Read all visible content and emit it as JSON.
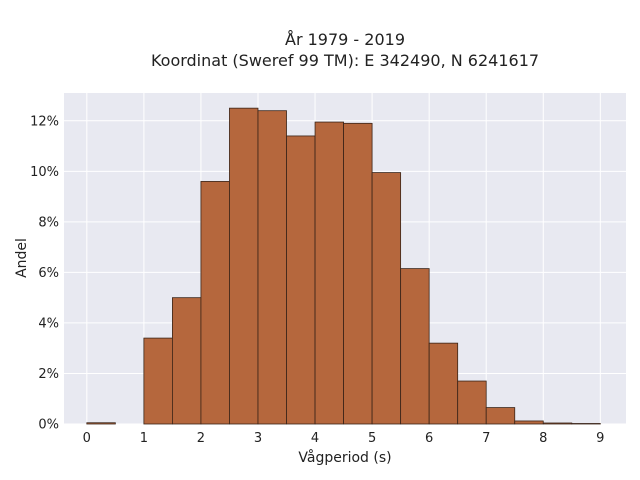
{
  "chart_data": {
    "type": "bar",
    "title": "År 1979 - 2019",
    "subtitle": "Koordinat (Sweref 99 TM): E 342490, N 6241617",
    "xlabel": "Vågperiod (s)",
    "ylabel": "Andel",
    "bin_width": 0.5,
    "bins": [
      {
        "start": 0.0,
        "value": 0.05
      },
      {
        "start": 0.5,
        "value": 0.0
      },
      {
        "start": 1.0,
        "value": 3.4
      },
      {
        "start": 1.5,
        "value": 5.0
      },
      {
        "start": 2.0,
        "value": 9.6
      },
      {
        "start": 2.5,
        "value": 12.5
      },
      {
        "start": 3.0,
        "value": 12.4
      },
      {
        "start": 3.5,
        "value": 11.4
      },
      {
        "start": 4.0,
        "value": 11.95
      },
      {
        "start": 4.5,
        "value": 11.9
      },
      {
        "start": 5.0,
        "value": 9.95
      },
      {
        "start": 5.5,
        "value": 6.15
      },
      {
        "start": 6.0,
        "value": 3.2
      },
      {
        "start": 6.5,
        "value": 1.7
      },
      {
        "start": 7.0,
        "value": 0.65
      },
      {
        "start": 7.5,
        "value": 0.12
      },
      {
        "start": 8.0,
        "value": 0.04
      },
      {
        "start": 8.5,
        "value": 0.02
      }
    ],
    "xlim": [
      -0.4,
      9.45
    ],
    "ylim": [
      0,
      13.1
    ],
    "xticks": [
      0,
      1,
      2,
      3,
      4,
      5,
      6,
      7,
      8,
      9
    ],
    "xtick_labels": [
      "0",
      "1",
      "2",
      "3",
      "4",
      "5",
      "6",
      "7",
      "8",
      "9"
    ],
    "yticks": [
      0,
      2,
      4,
      6,
      8,
      10,
      12
    ],
    "ytick_labels": [
      "0%",
      "2%",
      "4%",
      "6%",
      "8%",
      "10%",
      "12%"
    ],
    "grid": true,
    "bar_color": "#b5673d",
    "bar_edge_color": "#3a2418",
    "plot_background": "#e8e9f1",
    "grid_color": "#ffffff"
  }
}
